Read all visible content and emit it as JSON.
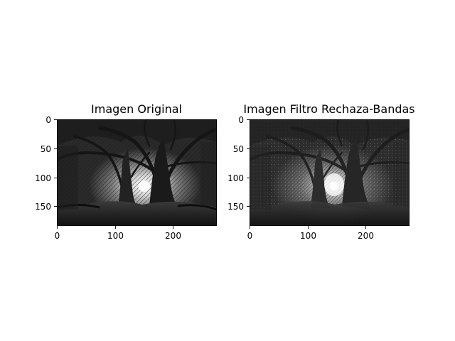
{
  "figure": {
    "panels": [
      {
        "title": "Imagen Original",
        "image_description_icon": "grayscale-forest-trees-photo",
        "x_ticks": [
          "0",
          "100",
          "200"
        ],
        "y_ticks": [
          "0",
          "50",
          "100",
          "150"
        ]
      },
      {
        "title": "Imagen Filtro Rechaza-Bandas",
        "image_description_icon": "filtered-grayscale-forest-trees-photo",
        "x_ticks": [
          "0",
          "100",
          "200"
        ],
        "y_ticks": [
          "0",
          "50",
          "100",
          "150"
        ]
      }
    ],
    "x_tick_values": [
      0,
      100,
      200
    ],
    "y_tick_values": [
      0,
      50,
      100,
      150
    ],
    "image_extent": {
      "x": [
        0,
        275
      ],
      "y": [
        0,
        183
      ]
    }
  }
}
